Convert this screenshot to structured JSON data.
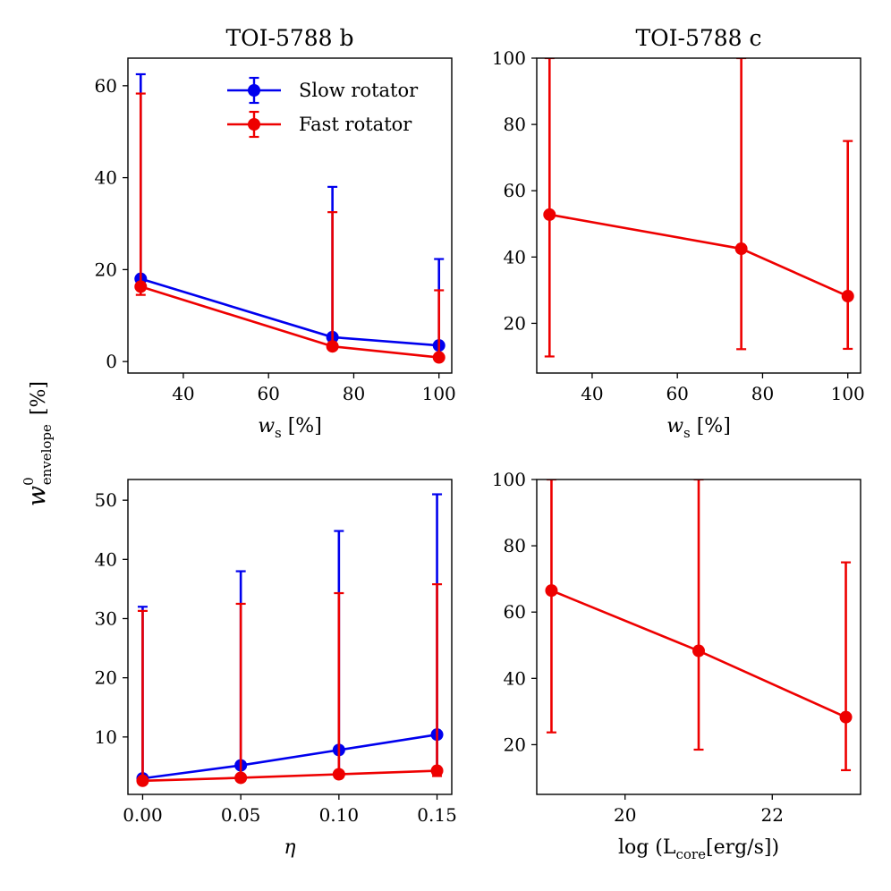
{
  "figure": {
    "shared_ylabel": {
      "symbol": "w",
      "superscript": "0",
      "subscript": "envelope",
      "unit": "[%]"
    }
  },
  "colors": {
    "slow": "#0000ee",
    "fast": "#ee0000"
  },
  "legend": {
    "location": "upper right",
    "slow_label": "Slow rotator",
    "fast_label": "Fast rotator"
  },
  "chart_data": [
    {
      "id": "b-ws",
      "type": "line",
      "title": "TOI-5788 b",
      "xlabel": {
        "main": "w",
        "sub": "s",
        "rest": " [%]"
      },
      "xlim": [
        27,
        103
      ],
      "ylim": [
        -2.5,
        66
      ],
      "xticks": [
        40,
        60,
        80,
        100
      ],
      "yticks": [
        0,
        20,
        40,
        60
      ],
      "show_legend": true,
      "series": [
        {
          "name": "Slow rotator",
          "color_key": "slow",
          "x": [
            30,
            75,
            100
          ],
          "y": [
            18,
            5.3,
            3.5
          ],
          "yerr_low": [
            16,
            5.0,
            3.3
          ],
          "yerr_high": [
            62.5,
            38,
            22.3
          ]
        },
        {
          "name": "Fast rotator",
          "color_key": "fast",
          "x": [
            30,
            75,
            100
          ],
          "y": [
            16.3,
            3.3,
            0.9
          ],
          "yerr_low": [
            14.5,
            3.1,
            0.8
          ],
          "yerr_high": [
            58.3,
            32.5,
            15.5
          ]
        }
      ]
    },
    {
      "id": "c-ws",
      "type": "line",
      "title": "TOI-5788 c",
      "xlabel": {
        "main": "w",
        "sub": "s",
        "rest": " [%]"
      },
      "xlim": [
        27,
        103
      ],
      "ylim": [
        5,
        100
      ],
      "xticks": [
        40,
        60,
        80,
        100
      ],
      "yticks": [
        20,
        40,
        60,
        80,
        100
      ],
      "show_legend": false,
      "series": [
        {
          "name": "Fast rotator",
          "color_key": "fast",
          "x": [
            30,
            75,
            100
          ],
          "y": [
            52.8,
            42.5,
            28.2
          ],
          "yerr_low": [
            10,
            12.2,
            12.3
          ],
          "yerr_high": [
            100,
            100,
            75
          ]
        }
      ]
    },
    {
      "id": "b-eta",
      "type": "line",
      "title": "",
      "xlabel": {
        "main": "η",
        "sub": "",
        "rest": ""
      },
      "xlim": [
        -0.0075,
        0.1575
      ],
      "ylim": [
        0.3,
        53.5
      ],
      "xticks": [
        0.0,
        0.05,
        0.1,
        0.15
      ],
      "xtick_labels": [
        "0.00",
        "0.05",
        "0.10",
        "0.15"
      ],
      "yticks": [
        10,
        20,
        30,
        40,
        50
      ],
      "show_legend": false,
      "series": [
        {
          "name": "Slow rotator",
          "color_key": "slow",
          "x": [
            0.0,
            0.05,
            0.1,
            0.15
          ],
          "y": [
            3.0,
            5.2,
            7.8,
            10.4
          ],
          "yerr_low": [
            2.8,
            3.0,
            3.5,
            3.8
          ],
          "yerr_high": [
            32,
            38,
            44.8,
            51
          ]
        },
        {
          "name": "Fast rotator",
          "color_key": "fast",
          "x": [
            0.0,
            0.05,
            0.1,
            0.15
          ],
          "y": [
            2.6,
            3.1,
            3.7,
            4.3
          ],
          "yerr_low": [
            2.5,
            2.8,
            3.2,
            3.4
          ],
          "yerr_high": [
            31.3,
            32.5,
            34.3,
            35.8
          ]
        }
      ]
    },
    {
      "id": "c-lcore",
      "type": "line",
      "title": "",
      "xlabel": {
        "main": "log (L",
        "sub": "core",
        "rest": "[erg/s])"
      },
      "xlim": [
        18.8,
        23.2
      ],
      "ylim": [
        5,
        100
      ],
      "xticks": [
        20,
        22
      ],
      "yticks": [
        20,
        40,
        60,
        80,
        100
      ],
      "show_legend": false,
      "series": [
        {
          "name": "Fast rotator",
          "color_key": "fast",
          "x": [
            19,
            21,
            23
          ],
          "y": [
            66.5,
            48.3,
            28.3
          ],
          "yerr_low": [
            23.7,
            18.5,
            12.3
          ],
          "yerr_high": [
            100,
            100,
            75
          ]
        }
      ]
    }
  ]
}
